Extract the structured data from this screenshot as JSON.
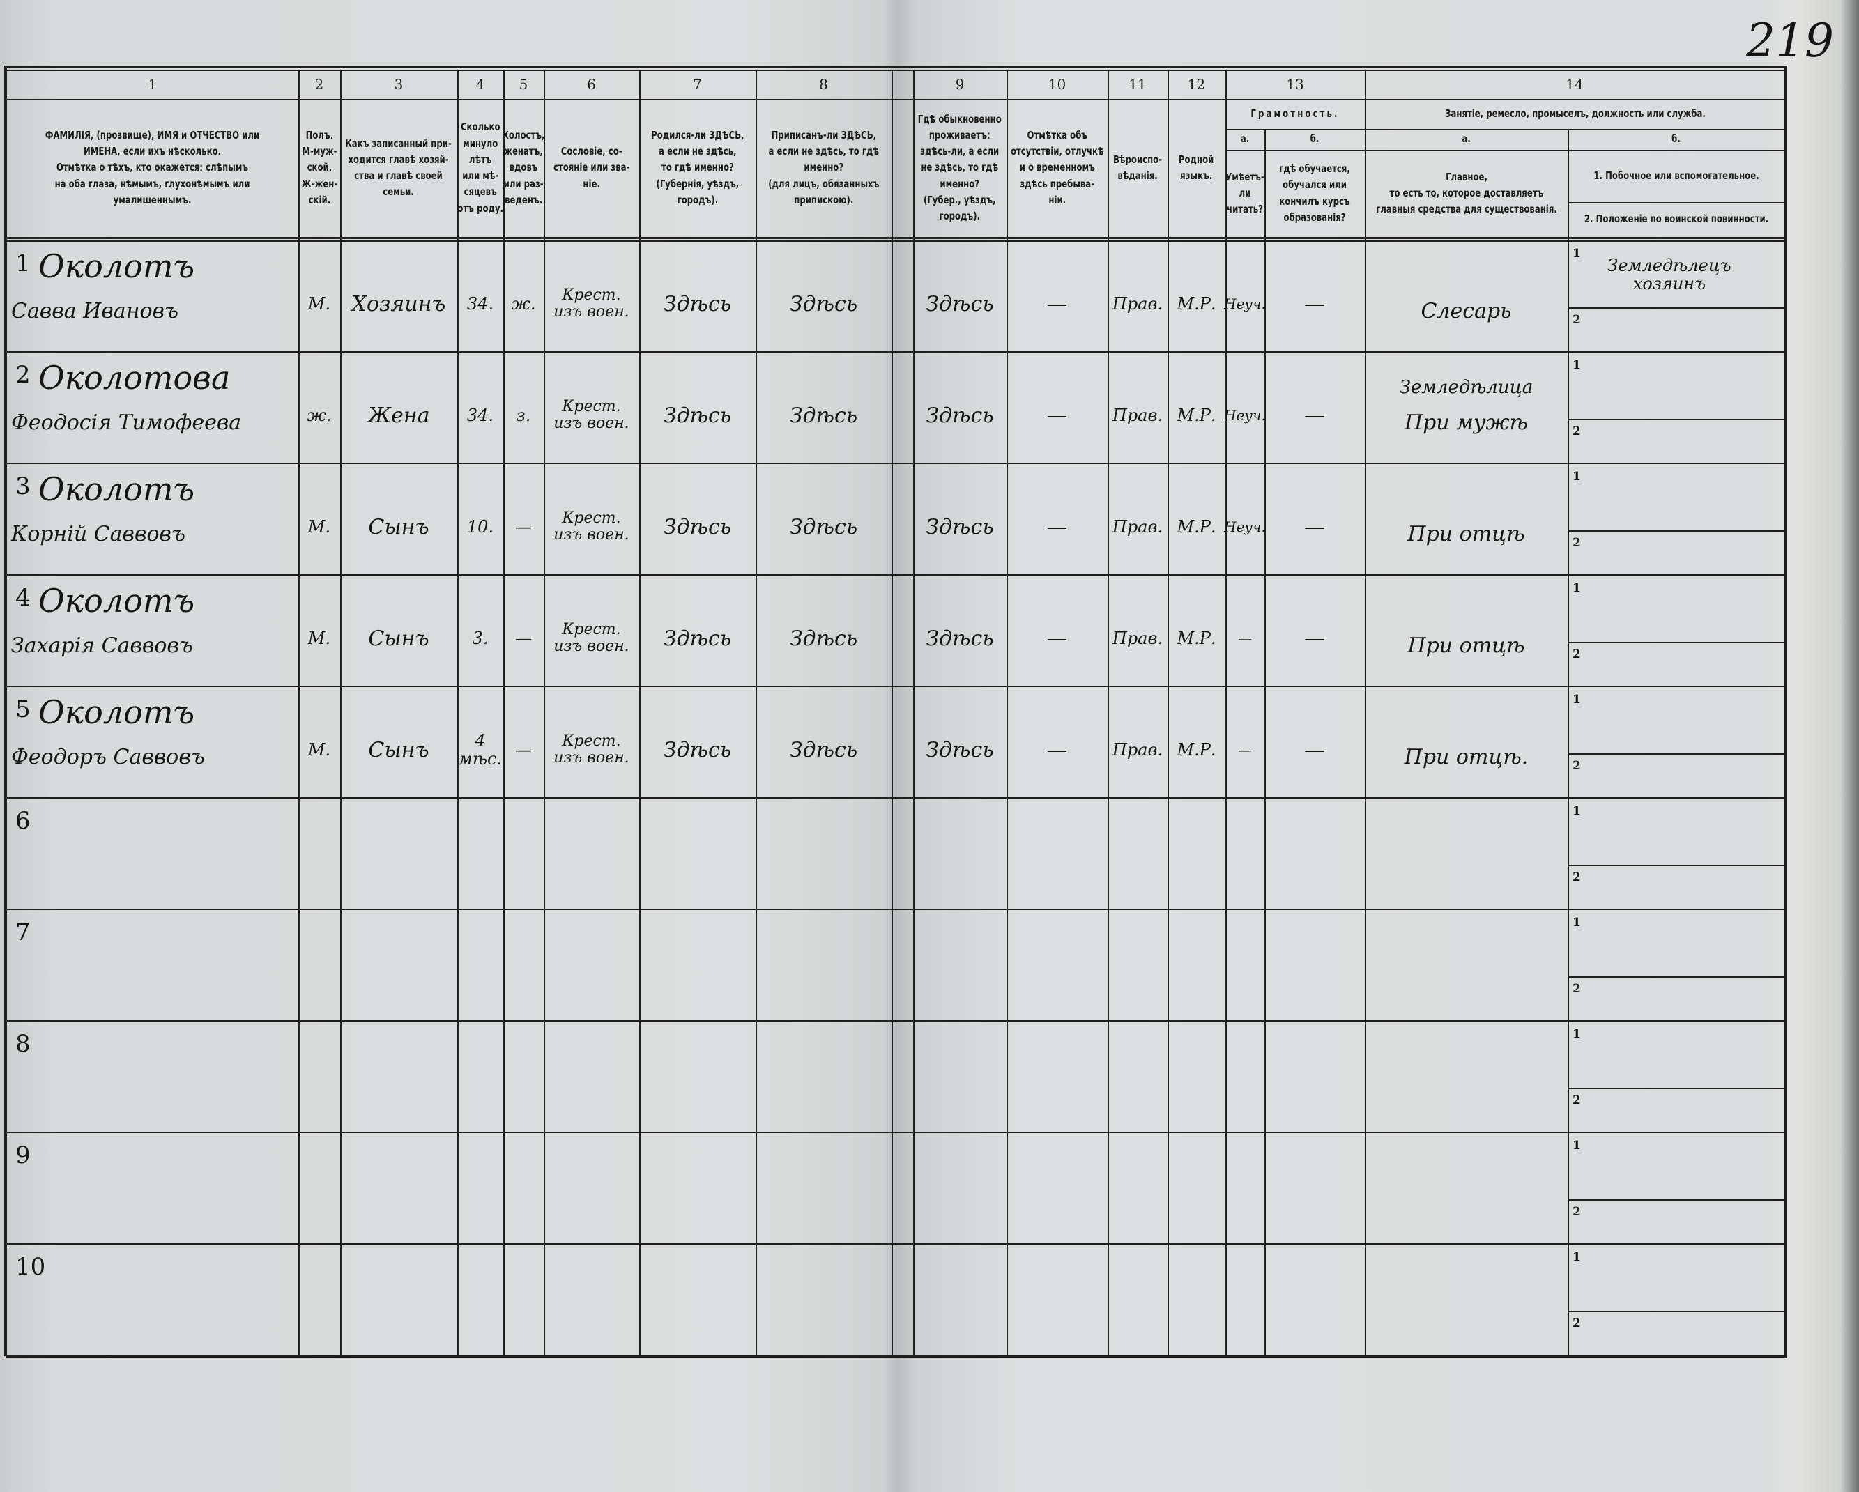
{
  "page_number": "219",
  "header": {
    "columns": [
      {
        "num": "1",
        "label": "ФАМИЛІЯ, (прозвище), ИМЯ и ОТЧЕСТВО или\nИМЕНА, если ихъ нѣсколько.\nОтмѣтка о тѣхъ, кто окажется: слѣпымъ\nна оба глаза, нѣмымъ, глухонѣмымъ или\nумалишеннымъ."
      },
      {
        "num": "2",
        "label": "Полъ.\nМ-муж-\nской.\nЖ-жен-\nскій."
      },
      {
        "num": "3",
        "label": "Какъ записанный при-\nходится главѣ хозяй-\nства и главѣ своей\nсемьи."
      },
      {
        "num": "4",
        "label": "Сколько\nминуло\nлѣтъ\nили мѣ-\nсяцевъ\nотъ роду."
      },
      {
        "num": "5",
        "label": "Холостъ,\nженатъ,\nвдовъ\nили раз-\nведенъ."
      },
      {
        "num": "6",
        "label": "Сословіе, со-\nстояніе или зва-\nніе."
      },
      {
        "num": "7",
        "label": "Родился-ли ЗДѢСЬ,\nа если не здѣсь,\nто гдѣ именно?\n(Губернія, уѣздъ, городъ)."
      },
      {
        "num": "8",
        "label": "Приписанъ-ли ЗДѢСЬ,\nа если не здѣсь, то гдѣ\nименно?\n(для лицъ, обязанныхъ\nприпискою)."
      },
      {
        "num": "9",
        "label": "Гдѣ обыкновенно\nпроживаетъ:\nздѣсь-ли, а если\nне здѣсь, то гдѣ\nименно?\n(Губер., уѣздъ, городъ)."
      },
      {
        "num": "10",
        "label": "Отмѣтка объ\nотсутствіи, отлучкѣ\nи о временномъ\nздѣсь пребыва-\nніи."
      },
      {
        "num": "11",
        "label": "Вѣроиспо-\nвѣданія."
      },
      {
        "num": "12",
        "label": "Родной\nязыкъ."
      }
    ],
    "literacy": {
      "num": "13",
      "title": "Грамотность.",
      "a": {
        "letter": "а.",
        "label": "Умѣетъ-\nли\nчитать?"
      },
      "b": {
        "letter": "б.",
        "label": "гдѣ обучается,\nобучался или\nкончилъ курсъ\nобразованія?"
      }
    },
    "occupation": {
      "num": "14",
      "title": "Занятіе, ремесло, промыселъ, должность или служба.",
      "a": {
        "letter": "а.",
        "label": "Главное,\nто есть то, которое доставляетъ\nглавныя средства для существованія."
      },
      "b": {
        "letter": "б.",
        "item1": "1.  Побочное или вспомогательное.",
        "item2": "2.  Положеніе по воинской повинности."
      }
    }
  },
  "subrow_labels": [
    "1",
    "2"
  ],
  "rows": [
    {
      "n": "1",
      "surname": "Околотъ",
      "given": "Савва Ивановъ",
      "sex": "М.",
      "relation": "Хозяинъ",
      "age": "34.",
      "marital": "ж.",
      "estate": "Крест.\nизъ воен.",
      "born": "Здѣсь",
      "registered": "Здѣсь",
      "residence": "Здѣсь",
      "absence": "—",
      "religion": "Прав.",
      "language": "М.Р.",
      "literate": "Неуч.",
      "education": "—",
      "occupation": "Слесарь",
      "occupation_note": "",
      "secondary": "Земледѣлецъ\nхозяинъ"
    },
    {
      "n": "2",
      "surname": "Околотова",
      "given": "Феодосія Тимофеева",
      "sex": "ж.",
      "relation": "Жена",
      "age": "34.",
      "marital": "з.",
      "estate": "Крест.\nизъ воен.",
      "born": "Здѣсь",
      "registered": "Здѣсь",
      "residence": "Здѣсь",
      "absence": "—",
      "religion": "Прав.",
      "language": "М.Р.",
      "literate": "Неуч.",
      "education": "—",
      "occupation": "При мужѣ",
      "occupation_note": "Земледѣлица",
      "secondary": ""
    },
    {
      "n": "3",
      "surname": "Околотъ",
      "given": "Корній Саввовъ",
      "sex": "М.",
      "relation": "Сынъ",
      "age": "10.",
      "marital": "—",
      "estate": "Крест.\nизъ воен.",
      "born": "Здѣсь",
      "registered": "Здѣсь",
      "residence": "Здѣсь",
      "absence": "—",
      "religion": "Прав.",
      "language": "М.Р.",
      "literate": "Неуч.",
      "education": "—",
      "occupation": "При отцѣ",
      "occupation_note": "",
      "secondary": ""
    },
    {
      "n": "4",
      "surname": "Околотъ",
      "given": "Захарія Саввовъ",
      "sex": "М.",
      "relation": "Сынъ",
      "age": "3.",
      "marital": "—",
      "estate": "Крест.\nизъ воен.",
      "born": "Здѣсь",
      "registered": "Здѣсь",
      "residence": "Здѣсь",
      "absence": "—",
      "religion": "Прав.",
      "language": "М.Р.",
      "literate": "—",
      "education": "—",
      "occupation": "При отцѣ",
      "occupation_note": "",
      "secondary": ""
    },
    {
      "n": "5",
      "surname": "Околотъ",
      "given": "Феодоръ Саввовъ",
      "sex": "М.",
      "relation": "Сынъ",
      "age": "4 мѣс.",
      "marital": "—",
      "estate": "Крест.\nизъ воен.",
      "born": "Здѣсь",
      "registered": "Здѣсь",
      "residence": "Здѣсь",
      "absence": "—",
      "religion": "Прав.",
      "language": "М.Р.",
      "literate": "—",
      "education": "—",
      "occupation": "При отцѣ.",
      "occupation_note": "",
      "secondary": ""
    },
    {
      "n": "6"
    },
    {
      "n": "7"
    },
    {
      "n": "8"
    },
    {
      "n": "9"
    },
    {
      "n": "10"
    }
  ]
}
